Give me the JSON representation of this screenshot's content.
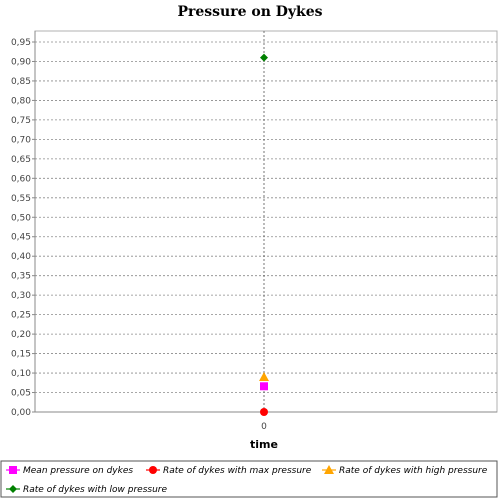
{
  "chart_data": {
    "type": "scatter",
    "title": "Pressure on Dykes",
    "xlabel": "time",
    "ylabel": "",
    "x_ticks": [
      "0"
    ],
    "ylim": [
      0.0,
      0.95
    ],
    "ytick_step": 0.05,
    "grid": true,
    "legend_position": "bottom",
    "series": [
      {
        "name": "Mean pressure on dykes",
        "x": [
          0
        ],
        "y": [
          0.066
        ],
        "marker": "square",
        "color": "#ff00ff"
      },
      {
        "name": "Rate of dykes with max pressure",
        "x": [
          0
        ],
        "y": [
          0.0
        ],
        "marker": "circle",
        "color": "#ff0000"
      },
      {
        "name": "Rate of dykes with high pressure",
        "x": [
          0
        ],
        "y": [
          0.09
        ],
        "marker": "triangle",
        "color": "#ffa500"
      },
      {
        "name": "Rate of dykes with low pressure",
        "x": [
          0
        ],
        "y": [
          0.91
        ],
        "marker": "diamond",
        "color": "#008000"
      }
    ]
  }
}
